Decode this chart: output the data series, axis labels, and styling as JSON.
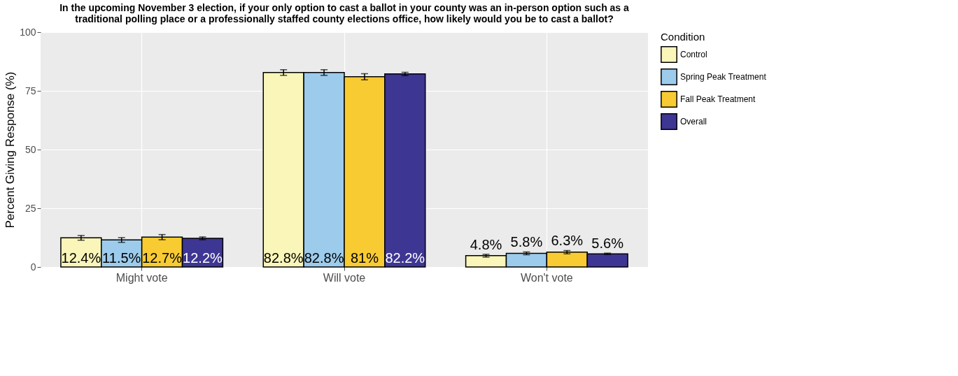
{
  "chart_data": {
    "type": "bar",
    "title": "In the upcoming November 3 election, if your only option to cast a ballot in your county was an in-person option such as a traditional polling place or a professionally staffed county elections office, how likely would you be to cast a ballot?",
    "ylabel": "Percent Giving Response (%)",
    "legend_title": "Condition",
    "legend": "right",
    "grid": true,
    "categories": [
      "Might vote",
      "Will vote",
      "Won't vote"
    ],
    "ylim": [
      0,
      100
    ],
    "yticks": [
      0,
      25,
      50,
      75,
      100
    ],
    "series": [
      {
        "name": "Control",
        "color": "#faf5b9",
        "values": [
          12.4,
          82.8,
          4.8
        ],
        "errors": [
          1.0,
          1.2,
          0.6
        ],
        "value_labels": [
          "12.4%",
          "82.8%",
          "4.8%"
        ]
      },
      {
        "name": "Spring Peak Treatment",
        "color": "#9ccbec",
        "values": [
          11.5,
          82.8,
          5.8
        ],
        "errors": [
          1.0,
          1.2,
          0.6
        ],
        "value_labels": [
          "11.5%",
          "82.8%",
          "5.8%"
        ]
      },
      {
        "name": "Fall Peak Treatment",
        "color": "#f8cb33",
        "values": [
          12.7,
          81,
          6.3
        ],
        "errors": [
          1.1,
          1.3,
          0.7
        ],
        "value_labels": [
          "12.7%",
          "81%",
          "6.3%"
        ]
      },
      {
        "name": "Overall",
        "color": "#3e3693",
        "values": [
          12.2,
          82.2,
          5.6
        ],
        "errors": [
          0.6,
          0.7,
          0.3
        ],
        "value_labels": [
          "12.2%",
          "82.2%",
          "5.6%"
        ]
      }
    ]
  }
}
